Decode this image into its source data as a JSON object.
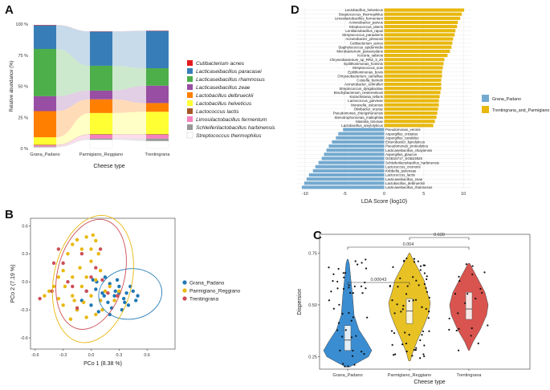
{
  "chart_data": [
    {
      "panel": "A",
      "type": "bar",
      "ylabel": "Relative abundance (%)",
      "xlabel": "Cheese type",
      "categories": [
        "Grana_Padano",
        "Parmigiano_Reggiano",
        "Trentingrana"
      ],
      "yticks": [
        "0 %",
        "25 %",
        "50 %",
        "75 %",
        "100 %"
      ],
      "ylim": [
        0,
        100
      ],
      "series": [
        {
          "name": "Streptococcus thermophilus",
          "color": "#ffffff",
          "values": [
            1.0,
            7.0,
            6.0
          ]
        },
        {
          "name": "Schleiferilactobacillus harbinensis",
          "color": "#999999",
          "values": [
            0.5,
            1.0,
            2.0
          ]
        },
        {
          "name": "Limosilactobacillus fermentum",
          "color": "#f781bf",
          "values": [
            1.0,
            3.0,
            3.0
          ]
        },
        {
          "name": "Lactococcus lactis",
          "color": "#a65628",
          "values": [
            0.5,
            0.5,
            0.5
          ]
        },
        {
          "name": "Lactobacillus helveticus",
          "color": "#ffff33",
          "values": [
            6.0,
            17.0,
            18.0
          ]
        },
        {
          "name": "Lactobacillus delbrueckii",
          "color": "#ff7f00",
          "values": [
            21.0,
            11.0,
            7.0
          ]
        },
        {
          "name": "Lacticaseibacillus zeae",
          "color": "#984ea3",
          "values": [
            12.0,
            7.0,
            14.0
          ]
        },
        {
          "name": "Lacticaseibacillus rhamnosus",
          "color": "#4daf4a",
          "values": [
            38.0,
            20.0,
            14.0
          ]
        },
        {
          "name": "Lacticaseibacillus paracasei",
          "color": "#377eb8",
          "values": [
            19.0,
            27.5,
            30.0
          ]
        },
        {
          "name": "Cutibacterium acnes",
          "color": "#e41a1c",
          "values": [
            0.3,
            0.2,
            0.2
          ]
        }
      ],
      "legend_order": [
        "Cutibacterium acnes",
        "Lacticaseibacillus paracasei",
        "Lacticaseibacillus rhamnosus",
        "Lacticaseibacillus zeae",
        "Lactobacillus delbrueckii",
        "Lactobacillus helveticus",
        "Lactococcus lactis",
        "Limosilactobacillus fermentum",
        "Schleiferilactobacillus harbinensis",
        "Streptococcus thermophilus"
      ]
    },
    {
      "panel": "D",
      "type": "bar",
      "orientation": "horizontal",
      "xlabel": "LDA Score (log10)",
      "xlim": [
        -11,
        11
      ],
      "xticks": [
        -10,
        -5,
        0,
        5,
        10
      ],
      "legend": [
        {
          "name": "Grana_Padano",
          "color": "#74a9cf"
        },
        {
          "name": "Trentingrana_and_Parmigiano",
          "color": "#e8b80e"
        }
      ],
      "taxa": [
        "Lactobacillus_helveticus",
        "Streptococcus_thermophilus",
        "Limosilactobacillus_fermentum",
        "Acinetobacter_parvus",
        "Streptococcus_uberis",
        "Lentilactobacillus_rapuii",
        "Streptococcus_parauberis",
        "Acinetobacter_johnsonii",
        "Cutibacterium_acnes",
        "Staphylococcus_epidermidis",
        "Microbacterium_paraoxydans",
        "Kocuria_salsicia",
        "Chryseobacterium_sp_RRZ_3_20",
        "Epilithonimonas_hominis",
        "Streptococcus_suis",
        "Epilithonimonas_bovis",
        "Chryseobacterium_camelliae",
        "Costella_burnetii",
        "Acinetobacter_schindleri",
        "Streptococcus_dysgalactiae",
        "Brachybacterium_nesterenkovii",
        "Kazachstania_telluris",
        "Lactococcus_garvieae",
        "Moraxella_osloensis",
        "Olivibacter_oryzae",
        "Pseudomonas_zhengshunensis",
        "Stenotrophomonas_maltophilia",
        "Massilia_timonae",
        "Lactobacillus_amylolyticus",
        "Pseudomonas_veronii",
        "Aspergillus_cristatus",
        "Aspergillus_candidus",
        "Enterobacter_lignolyticus",
        "Pseudomonas_proteolytica",
        "Lacticaseibacillus_chiayiensis",
        "Aspergillus_glaucus",
        "GGB15717_SGB23925",
        "Schleiferilactobacillus_harbinensis",
        "Lactococcus_cremoris",
        "Kribbella_ipeiensae",
        "Lactococcus_lactis",
        "Lacticaseibacillus_zeae",
        "Lactobacillus_delbrueckii",
        "Lacticaseibacillus_rhamnosus"
      ],
      "values": [
        10.1,
        9.8,
        9.6,
        9.3,
        9.2,
        9.0,
        8.9,
        8.7,
        8.6,
        8.5,
        8.3,
        8.0,
        7.6,
        7.5,
        7.4,
        7.3,
        7.3,
        7.2,
        7.2,
        7.2,
        7.1,
        7.0,
        6.9,
        6.9,
        6.8,
        6.7,
        6.6,
        6.4,
        6.2,
        -5.2,
        -5.8,
        -6.1,
        -6.6,
        -7.0,
        -7.3,
        -7.6,
        -7.9,
        -8.3,
        -8.7,
        -9.0,
        -9.5,
        -9.8,
        -10.1,
        -10.4
      ]
    },
    {
      "panel": "B",
      "type": "scatter",
      "xlabel": "PCo 1 (8.38 %)",
      "ylabel": "PCo 2 (7.19 %)",
      "xlim": [
        -0.65,
        0.9
      ],
      "ylim": [
        -0.72,
        0.68
      ],
      "xticks": [
        -0.6,
        -0.3,
        0.0,
        0.3,
        0.6
      ],
      "yticks": [
        -0.6,
        -0.3,
        0.0,
        0.3,
        0.6
      ],
      "ytick_labels": [
        "-0.6",
        "-0.3",
        "0.0",
        "0.3",
        "0.6"
      ],
      "xtick_labels": [
        "-0.6",
        "-0.3",
        "0.0",
        "0.3",
        "0.6"
      ],
      "legend": [
        {
          "name": "Grana_Padano",
          "color": "#1f78b4"
        },
        {
          "name": "Parmigiano_Reggiano",
          "color": "#e8b80e"
        },
        {
          "name": "Trentingrana",
          "color": "#cd4e57"
        }
      ],
      "ellipses": [
        {
          "group": "Grana_Padano",
          "cx": 0.42,
          "cy": -0.13,
          "rx": 0.34,
          "ry": 0.27,
          "angle": -8
        },
        {
          "group": "Parmigiano_Reggiano",
          "cx": 0.02,
          "cy": 0.03,
          "rx": 0.42,
          "ry": 0.69,
          "angle": 12
        },
        {
          "group": "Trentingrana",
          "cx": 0.0,
          "cy": 0.08,
          "rx": 0.36,
          "ry": 0.6,
          "angle": 14
        }
      ],
      "points": {
        "Grana_Padano": [
          [
            0.05,
            -0.08
          ],
          [
            0.12,
            -0.12
          ],
          [
            0.2,
            -0.02
          ],
          [
            0.25,
            -0.15
          ],
          [
            0.3,
            -0.05
          ],
          [
            0.35,
            -0.18
          ],
          [
            0.38,
            -0.12
          ],
          [
            0.4,
            -0.25
          ],
          [
            0.45,
            -0.1
          ],
          [
            0.5,
            -0.15
          ],
          [
            0.28,
            0.02
          ],
          [
            0.15,
            0.05
          ],
          [
            0.1,
            -0.2
          ],
          [
            0.22,
            -0.28
          ],
          [
            0.33,
            -0.3
          ],
          [
            0.18,
            -0.22
          ],
          [
            0.42,
            -0.05
          ],
          [
            0.06,
            0.0
          ],
          [
            -0.05,
            -0.1
          ],
          [
            0.0,
            -0.25
          ],
          [
            0.08,
            -0.32
          ],
          [
            0.26,
            -0.1
          ],
          [
            0.36,
            -0.22
          ],
          [
            0.14,
            -0.15
          ],
          [
            -0.1,
            -0.2
          ],
          [
            0.48,
            -0.2
          ],
          [
            0.3,
            -0.12
          ],
          [
            0.2,
            -0.35
          ],
          [
            -0.15,
            -0.3
          ],
          [
            0.02,
            0.02
          ]
        ],
        "Parmigiano_Reggiano": [
          [
            -0.2,
            0.4
          ],
          [
            -0.15,
            0.45
          ],
          [
            -0.05,
            0.48
          ],
          [
            0.02,
            0.5
          ],
          [
            0.05,
            0.44
          ],
          [
            -0.1,
            0.35
          ],
          [
            0.0,
            0.35
          ],
          [
            -0.25,
            0.3
          ],
          [
            0.08,
            0.3
          ],
          [
            -0.3,
            0.12
          ],
          [
            -0.4,
            -0.05
          ],
          [
            -0.45,
            -0.1
          ],
          [
            -0.35,
            -0.18
          ],
          [
            -0.2,
            -0.15
          ],
          [
            -0.28,
            -0.05
          ],
          [
            -0.1,
            -0.05
          ],
          [
            0.1,
            -0.2
          ],
          [
            0.15,
            -0.1
          ],
          [
            0.0,
            -0.15
          ],
          [
            -0.05,
            0.05
          ],
          [
            -0.2,
            0.05
          ],
          [
            -0.15,
            -0.3
          ],
          [
            -0.05,
            -0.38
          ],
          [
            0.05,
            -0.35
          ],
          [
            0.2,
            -0.05
          ],
          [
            0.25,
            -0.2
          ],
          [
            -0.3,
            -0.25
          ],
          [
            -0.12,
            0.15
          ],
          [
            0.1,
            0.12
          ],
          [
            -0.35,
            0.05
          ],
          [
            -0.5,
            -0.15
          ],
          [
            0.0,
            0.22
          ],
          [
            -0.22,
            -0.4
          ],
          [
            0.12,
            -0.3
          ],
          [
            -0.08,
            -0.22
          ],
          [
            0.3,
            -0.1
          ],
          [
            -0.18,
            -0.2
          ],
          [
            0.05,
            0.02
          ]
        ],
        "Trentingrana": [
          [
            -0.35,
            0.35
          ],
          [
            -0.3,
            0.2
          ],
          [
            -0.42,
            -0.1
          ],
          [
            -0.55,
            -0.18
          ],
          [
            -0.1,
            0.3
          ],
          [
            0.05,
            0.15
          ],
          [
            -0.2,
            -0.05
          ],
          [
            0.12,
            0.02
          ],
          [
            -0.05,
            -0.1
          ],
          [
            0.18,
            -0.12
          ],
          [
            0.28,
            -0.15
          ],
          [
            -0.15,
            -0.28
          ],
          [
            0.0,
            0.05
          ],
          [
            -0.25,
            0.0
          ],
          [
            0.1,
            0.35
          ],
          [
            -0.4,
            0.2
          ]
        ]
      }
    },
    {
      "panel": "C",
      "type": "violin",
      "xlabel": "Cheese type",
      "ylabel": "Dispersion",
      "categories": [
        "Grana_Padano",
        "Parmigiano_Reggiano",
        "Trentingrana"
      ],
      "colors": [
        "#3a8dd1",
        "#e8c224",
        "#d9544f"
      ],
      "ylim": [
        0.19,
        0.84
      ],
      "yticks": [
        "0.25",
        "0.50",
        "0.75"
      ],
      "medians": [
        0.33,
        0.47,
        0.48
      ],
      "q1": [
        0.28,
        0.41,
        0.43
      ],
      "q3": [
        0.4,
        0.53,
        0.56
      ],
      "comparisons": [
        {
          "from": "Grana_Padano",
          "to": "Parmigiano_Reggiano",
          "p": "0.00043"
        },
        {
          "from": "Grana_Padano",
          "to": "Trentingrana",
          "p": "0.004"
        },
        {
          "from": "Parmigiano_Reggiano",
          "to": "Trentingrana",
          "p": "0.639"
        }
      ]
    }
  ],
  "panel_labels": {
    "A": "A",
    "B": "B",
    "C": "C",
    "D": "D"
  }
}
